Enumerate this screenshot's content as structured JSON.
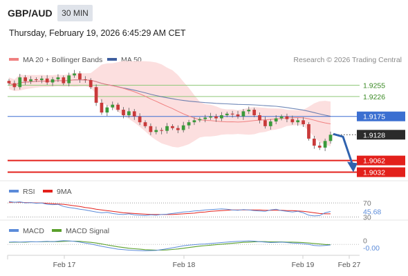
{
  "header": {
    "symbol": "GBP/AUD",
    "interval": "30 MIN",
    "datetime": "Thursday, February 19, 2026 6:45:29 AM CET"
  },
  "colors": {
    "ma20": "#f08080",
    "bollinger_fill": "#fcdcdc",
    "ma50": "#3f5f9f",
    "support": "#e3201b",
    "pivot": "#3b6fd1",
    "resistance": "#8fc878",
    "candle_up": "#3b9a3b",
    "candle_down": "#c93a3a",
    "rsi": "#5b8bd9",
    "rsi_ma": "#e3201b",
    "macd": "#5b8bd9",
    "macd_signal": "#5aa02c",
    "arrow": "#2f62ae"
  },
  "chart_data": [
    {
      "type": "candlestick",
      "legend": [
        {
          "key": "ma20",
          "label": "MA 20 + Bollinger Bands"
        },
        {
          "key": "ma50",
          "label": "MA 50"
        }
      ],
      "copyright": "Research © 2026 Trading Central",
      "x_ticks": [
        "Feb 17",
        "Feb 18",
        "Feb 19",
        "Feb 27"
      ],
      "ylim": [
        1.901,
        1.93
      ],
      "levels": [
        {
          "value": 1.9255,
          "label": "1.9255",
          "type": "resistance"
        },
        {
          "value": 1.9226,
          "label": "1.9226",
          "type": "resistance"
        },
        {
          "value": 1.9175,
          "label": "1.9175",
          "type": "pivot"
        },
        {
          "value": 1.9062,
          "label": "1.9062",
          "type": "support"
        },
        {
          "value": 1.9032,
          "label": "1.9032",
          "type": "support"
        }
      ],
      "last_price": {
        "value": 1.9128,
        "label": "1.9128"
      },
      "close": [
        1.926,
        1.925,
        1.9275,
        1.9265,
        1.927,
        1.9268,
        1.9272,
        1.9262,
        1.927,
        1.9275,
        1.926,
        1.928,
        1.9285,
        1.927,
        1.9268,
        1.925,
        1.921,
        1.9185,
        1.9198,
        1.9205,
        1.9192,
        1.9178,
        1.9188,
        1.9175,
        1.916,
        1.915,
        1.9135,
        1.914,
        1.9138,
        1.915,
        1.9145,
        1.914,
        1.9152,
        1.916,
        1.9165,
        1.9168,
        1.9172,
        1.9175,
        1.917,
        1.9178,
        1.9182,
        1.918,
        1.9175,
        1.9188,
        1.9192,
        1.9178,
        1.9165,
        1.915,
        1.9162,
        1.917,
        1.9175,
        1.9168,
        1.916,
        1.9165,
        1.9155,
        1.9118,
        1.91,
        1.9095,
        1.9112,
        1.9128
      ]
    },
    {
      "type": "line",
      "legend": [
        {
          "key": "rsi",
          "label": "RSI"
        },
        {
          "key": "rsi_ma",
          "label": "9MA"
        }
      ],
      "ylim": [
        27,
        78
      ],
      "levels": [
        {
          "value": 70,
          "label": "70"
        },
        {
          "value": 30,
          "label": "30"
        }
      ],
      "last_value": {
        "value": 45.68,
        "label": "45.68"
      },
      "rsi": [
        74,
        72,
        73,
        70,
        71,
        69,
        70,
        66,
        65,
        66,
        60,
        57,
        55,
        52,
        50,
        47,
        44,
        42,
        43,
        40,
        38,
        37,
        39,
        36,
        35,
        34,
        36,
        35,
        37,
        38,
        40,
        42,
        44,
        45,
        47,
        48,
        50,
        51,
        52,
        53,
        52,
        50,
        49,
        51,
        50,
        48,
        47,
        46,
        50,
        52,
        48,
        46,
        44,
        46,
        42,
        35,
        33,
        34,
        42,
        45.68
      ],
      "rsi_ma": [
        72,
        72,
        72,
        71,
        71,
        70,
        70,
        69,
        68,
        67,
        66,
        64,
        62,
        60,
        57,
        55,
        52,
        50,
        48,
        46,
        44,
        42,
        41,
        40,
        39,
        38,
        37,
        37,
        37,
        37,
        37,
        38,
        39,
        40,
        41,
        43,
        44,
        46,
        47,
        48,
        49,
        50,
        50,
        50,
        50,
        50,
        50,
        49,
        49,
        49,
        49,
        48,
        48,
        47,
        46,
        44,
        42,
        40,
        39,
        39
      ]
    },
    {
      "type": "line",
      "legend": [
        {
          "key": "macd",
          "label": "MACD"
        },
        {
          "key": "macd_signal",
          "label": "MACD Signal"
        }
      ],
      "ylim": [
        -0.004,
        0.003
      ],
      "levels": [
        {
          "value": 0,
          "label": "0"
        }
      ],
      "last_value": {
        "value": -0.0002,
        "label": "-0.00"
      },
      "macd": [
        0.001,
        0.0011,
        0.001,
        0.0011,
        0.0012,
        0.0011,
        0.0012,
        0.0013,
        0.0012,
        0.0014,
        0.0016,
        0.0015,
        0.0013,
        0.001,
        0.0006,
        0.0002,
        -0.0003,
        -0.0008,
        -0.0012,
        -0.0016,
        -0.002,
        -0.0022,
        -0.0024,
        -0.0025,
        -0.0026,
        -0.0027,
        -0.0026,
        -0.0025,
        -0.0022,
        -0.0018,
        -0.0014,
        -0.001,
        -0.0006,
        -0.0003,
        -0.0001,
        0.0001,
        0.0002,
        0.0004,
        0.0006,
        0.0008,
        0.001,
        0.0012,
        0.0013,
        0.0014,
        0.0015,
        0.0014,
        0.0012,
        0.001,
        0.0008,
        0.0009,
        0.001,
        0.0008,
        0.0006,
        0.0005,
        0.0003,
        0.0,
        -0.0004,
        -0.0006,
        -0.0004,
        -0.0002
      ],
      "macd_signal": [
        0.0009,
        0.001,
        0.001,
        0.001,
        0.0011,
        0.0011,
        0.0011,
        0.0012,
        0.0012,
        0.0012,
        0.0013,
        0.0014,
        0.0014,
        0.0013,
        0.0011,
        0.0009,
        0.0006,
        0.0002,
        -0.0002,
        -0.0006,
        -0.001,
        -0.0013,
        -0.0016,
        -0.0018,
        -0.002,
        -0.0022,
        -0.0023,
        -0.0024,
        -0.0024,
        -0.0023,
        -0.0021,
        -0.0019,
        -0.0016,
        -0.0013,
        -0.001,
        -0.0007,
        -0.0005,
        -0.0003,
        -0.0001,
        0.0001,
        0.0003,
        0.0005,
        0.0007,
        0.0009,
        0.001,
        0.0011,
        0.0012,
        0.0012,
        0.0011,
        0.0011,
        0.0011,
        0.001,
        0.001,
        0.0009,
        0.0008,
        0.0006,
        0.0004,
        0.0002,
        0.0,
        -0.0001
      ]
    }
  ]
}
